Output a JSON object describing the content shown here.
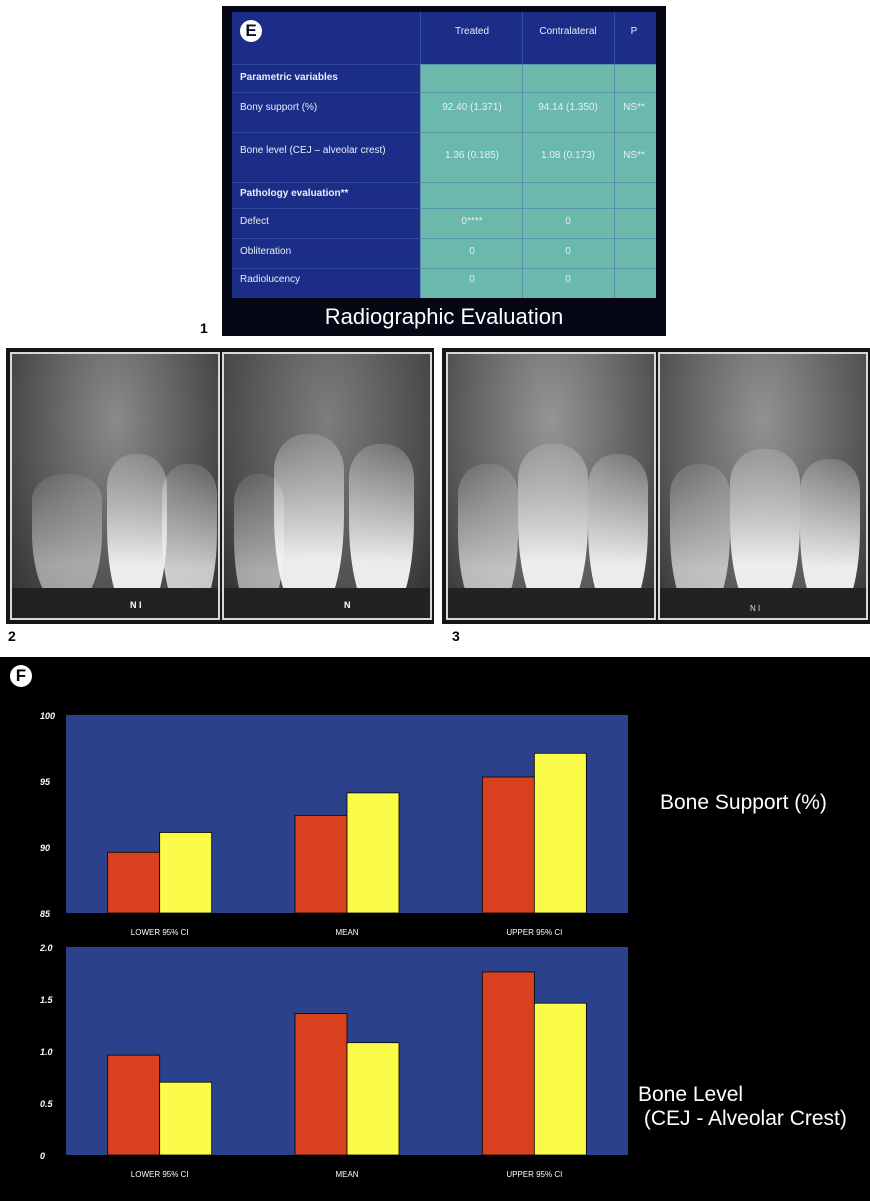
{
  "panel_e": {
    "letter": "E",
    "headers": [
      "",
      "Treated",
      "Contralateral",
      "P"
    ],
    "rows": [
      {
        "label": "Parametric variables",
        "bold": true,
        "values": [
          "",
          "",
          ""
        ]
      },
      {
        "label": "Bony support (%)",
        "values": [
          "92.40 (1.371)",
          "94.14 (1.350)",
          "NS**"
        ]
      },
      {
        "label": "Bone level (CEJ – alveolar crest)",
        "values": [
          "1.36 (0.185)",
          "1.08 (0.173)",
          "NS**"
        ]
      },
      {
        "label": "Pathology evaluation**",
        "bold": true,
        "values": [
          "",
          "",
          ""
        ]
      },
      {
        "label": "Defect",
        "values": [
          "0****",
          "0",
          ""
        ]
      },
      {
        "label": "Obliteration",
        "values": [
          "0",
          "0",
          ""
        ]
      },
      {
        "label": "Radiolucency",
        "values": [
          "0",
          "0",
          ""
        ]
      }
    ],
    "caption": "Radiographic Evaluation",
    "figure_number": "1"
  },
  "xray": {
    "figure_number_left": "2",
    "figure_number_right": "3",
    "marker_1": "N I",
    "marker_2": "N",
    "marker_3": "N I"
  },
  "panel_f": {
    "letter": "F",
    "colors": {
      "treated": "#d8401e",
      "contralateral": "#fbfb4a",
      "plot_bg": "#2c418c"
    }
  },
  "chart_data": [
    {
      "type": "bar",
      "title": "Bone Support (%)",
      "categories": [
        "LOWER 95% CI",
        "MEAN",
        "UPPER 95% CI"
      ],
      "series": [
        {
          "values": [
            89.6,
            92.4,
            95.3
          ]
        },
        {
          "values": [
            91.1,
            94.1,
            97.1
          ]
        }
      ],
      "ylim": [
        85,
        100
      ],
      "yticks": [
        "85",
        "90",
        "95",
        "100"
      ],
      "xlabel": "",
      "ylabel": ""
    },
    {
      "type": "bar",
      "title": "Bone Level\n (CEJ - Alveolar Crest)",
      "categories": [
        "LOWER 95% CI",
        "MEAN",
        "UPPER 95% CI"
      ],
      "series": [
        {
          "values": [
            0.96,
            1.36,
            1.76
          ]
        },
        {
          "values": [
            0.7,
            1.08,
            1.46
          ]
        }
      ],
      "ylim": [
        0,
        2
      ],
      "yticks": [
        "0",
        "0.5",
        "1.0",
        "1.5",
        "2.0"
      ],
      "xlabel": "",
      "ylabel": ""
    }
  ]
}
